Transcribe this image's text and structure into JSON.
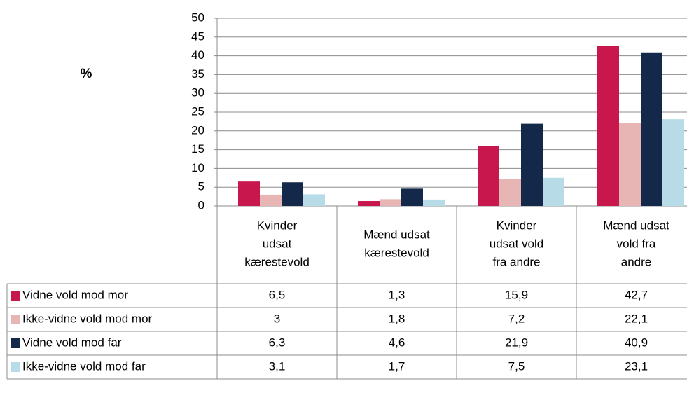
{
  "chart_data": {
    "type": "bar",
    "ylabel": "%",
    "categories": [
      "Kvinder\nudsat\nkærestevold",
      "Mænd udsat\nkærestevold",
      "Kvinder\nudsat vold\nfra andre",
      "Mænd udsat\nvold fra\nandre"
    ],
    "series": [
      {
        "name": "Vidne vold mod mor",
        "color": "#c8174d",
        "values": [
          6.5,
          1.3,
          15.9,
          42.7
        ],
        "value_labels": [
          "6,5",
          "1,3",
          "15,9",
          "42,7"
        ]
      },
      {
        "name": "Ikke-vidne vold mod mor",
        "color": "#e8b5b5",
        "values": [
          3,
          1.8,
          7.2,
          22.1
        ],
        "value_labels": [
          "3",
          "1,8",
          "7,2",
          "22,1"
        ]
      },
      {
        "name": "Vidne vold mod far",
        "color": "#14294a",
        "values": [
          6.3,
          4.6,
          21.9,
          40.9
        ],
        "value_labels": [
          "6,3",
          "4,6",
          "21,9",
          "40,9"
        ]
      },
      {
        "name": "Ikke-vidne vold mod far",
        "color": "#b7dce8",
        "values": [
          3.1,
          1.7,
          7.5,
          23.1
        ],
        "value_labels": [
          "3,1",
          "1,7",
          "7,5",
          "23,1"
        ]
      }
    ],
    "ylim": [
      0,
      50
    ],
    "yticks": [
      0,
      5,
      10,
      15,
      20,
      25,
      30,
      35,
      40,
      45,
      50
    ],
    "grid": true,
    "legend": "table"
  }
}
